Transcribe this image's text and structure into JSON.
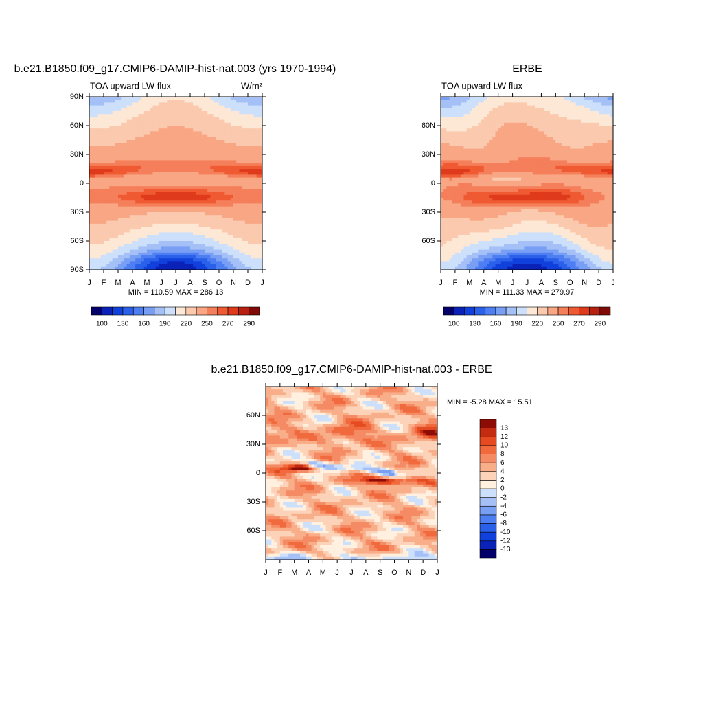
{
  "chart_data": [
    {
      "type": "contour",
      "title": "b.e21.B1850.f09_g17.CMIP6-DAMIP-hist-nat.003 (yrs 1970-1994)",
      "subtitle": "TOA upward LW flux",
      "units": "W/m²",
      "categories": [
        "J",
        "F",
        "M",
        "A",
        "M",
        "J",
        "J",
        "A",
        "S",
        "O",
        "N",
        "D",
        "J"
      ],
      "ylim": [
        -90,
        90
      ],
      "yticks": [
        {
          "value": 90,
          "label": "90N"
        },
        {
          "value": 60,
          "label": "60N"
        },
        {
          "value": 30,
          "label": "30N"
        },
        0,
        {
          "value": -30,
          "label": "30S"
        },
        {
          "value": -60,
          "label": "60S"
        },
        {
          "value": -90,
          "label": "90S"
        }
      ],
      "stats": "MIN = 110.59 MAX = 286.13",
      "colorbar": {
        "orientation": "horizontal",
        "colors": [
          "#03006b",
          "#0a22b8",
          "#1141dc",
          "#2a60ea",
          "#4d7ef2",
          "#799ff5",
          "#a4c0f7",
          "#cde0fb",
          "#fde8d6",
          "#fbc9ae",
          "#f8a684",
          "#f57f5a",
          "#ef5a32",
          "#df3a1b",
          "#b82110",
          "#800b06"
        ],
        "levels": [
          100,
          115,
          130,
          145,
          160,
          175,
          190,
          205,
          220,
          235,
          250,
          260,
          270,
          280,
          290
        ],
        "tick_levels": [
          100,
          130,
          160,
          190,
          220,
          250,
          270,
          290
        ]
      }
    },
    {
      "type": "contour",
      "title": "ERBE",
      "subtitle": "TOA upward LW flux",
      "categories": [
        "J",
        "F",
        "M",
        "A",
        "M",
        "J",
        "J",
        "A",
        "S",
        "O",
        "N",
        "D",
        "J"
      ],
      "ylim": [
        -90,
        90
      ],
      "yticks": [
        {
          "value": 60,
          "label": "60N"
        },
        {
          "value": 30,
          "label": "30N"
        },
        0,
        {
          "value": -30,
          "label": "30S"
        },
        {
          "value": -60,
          "label": "60S"
        }
      ],
      "stats": "MIN = 111.33 MAX = 279.97",
      "colorbar": {
        "orientation": "horizontal",
        "colors": [
          "#03006b",
          "#0a22b8",
          "#1141dc",
          "#2a60ea",
          "#4d7ef2",
          "#799ff5",
          "#a4c0f7",
          "#cde0fb",
          "#fde8d6",
          "#fbc9ae",
          "#f8a684",
          "#f57f5a",
          "#ef5a32",
          "#df3a1b",
          "#b82110",
          "#800b06"
        ],
        "levels": [
          100,
          115,
          130,
          145,
          160,
          175,
          190,
          205,
          220,
          235,
          250,
          260,
          270,
          280,
          290
        ],
        "tick_levels": [
          100,
          130,
          160,
          190,
          220,
          250,
          270,
          290
        ]
      }
    },
    {
      "type": "contour",
      "title": "b.e21.B1850.f09_g17.CMIP6-DAMIP-hist-nat.003 - ERBE",
      "categories": [
        "J",
        "F",
        "M",
        "A",
        "M",
        "J",
        "J",
        "A",
        "S",
        "O",
        "N",
        "D",
        "J"
      ],
      "ylim": [
        -90,
        90
      ],
      "yticks": [
        {
          "value": 60,
          "label": "60N"
        },
        {
          "value": 30,
          "label": "30N"
        },
        0,
        {
          "value": -30,
          "label": "30S"
        },
        {
          "value": -60,
          "label": "60S"
        }
      ],
      "stats": "MIN =  -5.28 MAX =  15.51",
      "colorbar": {
        "orientation": "vertical",
        "colors": [
          "#03006b",
          "#0a22b8",
          "#1141dc",
          "#2a60ea",
          "#4d7ef2",
          "#799ff5",
          "#a4c0f7",
          "#cde0fb",
          "#fff0e0",
          "#fcd3b8",
          "#f9ae8a",
          "#f58b64",
          "#f06a3e",
          "#e54a20",
          "#c32c10",
          "#8e0c06"
        ],
        "levels": [
          -13,
          -12,
          -10,
          -8,
          -6,
          -4,
          -2,
          0,
          2,
          4,
          6,
          8,
          10,
          12,
          13
        ]
      }
    }
  ]
}
